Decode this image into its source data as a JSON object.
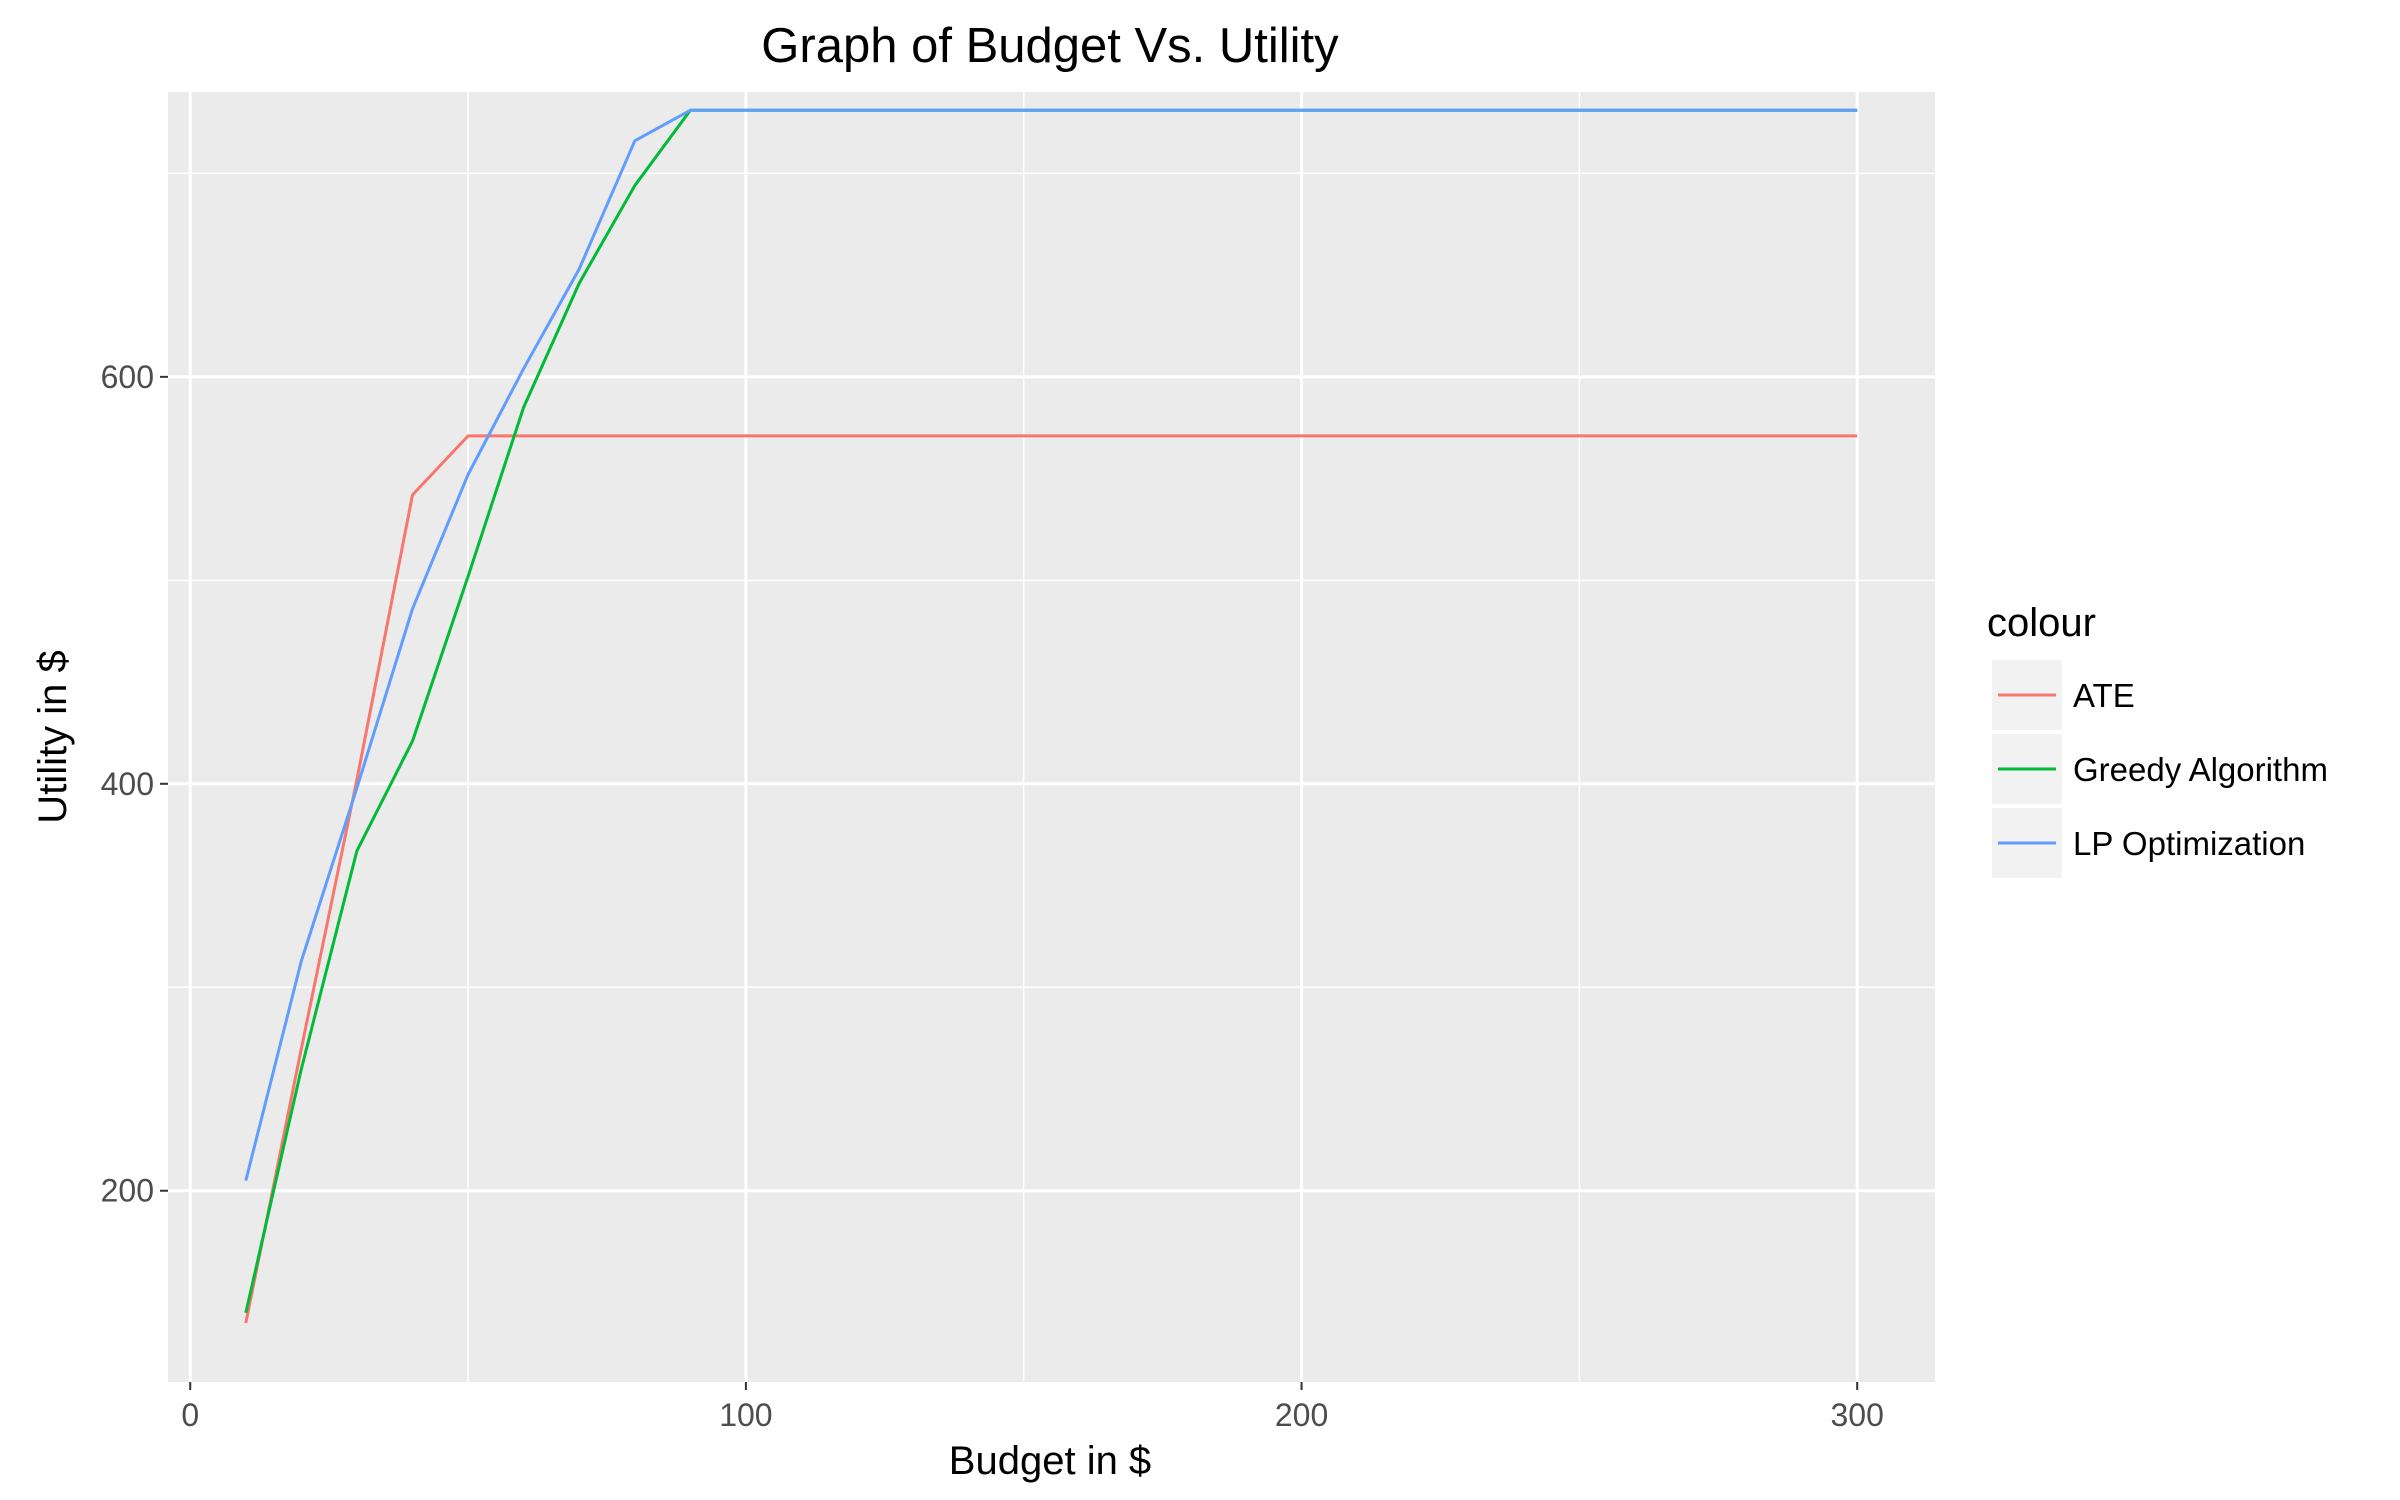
{
  "chart_data": {
    "type": "line",
    "title": "Graph of Budget Vs. Utility",
    "xlabel": "Budget in $",
    "ylabel": "Utility in $",
    "xlim": [
      -4,
      314
    ],
    "ylim": [
      106,
      740
    ],
    "x_ticks": [
      0,
      100,
      200,
      300
    ],
    "x_tick_labels": [
      "0",
      "100",
      "200",
      "300"
    ],
    "x_minor_ticks": [
      50,
      150,
      250
    ],
    "y_ticks": [
      200,
      400,
      600
    ],
    "y_tick_labels": [
      "200",
      "400",
      "600"
    ],
    "y_minor_ticks": [
      300,
      500,
      700
    ],
    "grid": true,
    "legend": {
      "title": "colour",
      "position": "right"
    },
    "series": [
      {
        "name": "ATE",
        "color": "#F8766D",
        "x": [
          10,
          20,
          30,
          40,
          50,
          60,
          70,
          80,
          90,
          100,
          150,
          200,
          250,
          300
        ],
        "y": [
          135,
          270,
          402,
          542,
          571,
          571,
          571,
          571,
          571,
          571,
          571,
          571,
          571,
          571
        ]
      },
      {
        "name": "Greedy Algorithm",
        "color": "#00BA38",
        "x": [
          10,
          20,
          30,
          40,
          50,
          60,
          70,
          80,
          90,
          100,
          150,
          200,
          250,
          300
        ],
        "y": [
          140,
          260,
          367,
          421,
          502,
          585,
          646,
          694,
          731,
          731,
          731,
          731,
          731,
          731
        ]
      },
      {
        "name": "LP Optimization",
        "color": "#619CFF",
        "x": [
          10,
          20,
          30,
          40,
          50,
          60,
          70,
          80,
          90,
          100,
          150,
          200,
          250,
          300
        ],
        "y": [
          205,
          313,
          398,
          486,
          552,
          604,
          653,
          716,
          731,
          731,
          731,
          731,
          731,
          731
        ]
      }
    ]
  }
}
